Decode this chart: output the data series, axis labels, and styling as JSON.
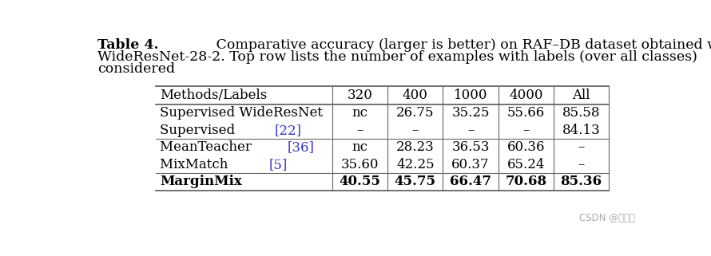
{
  "title_bold": "Table 4.",
  "title_rest_line1": " Comparative accuracy (larger is better) on RAF–DB dataset obtained with",
  "title_line2": "WideResNet-28-2. Top row lists the number of examples with labels (over all classes)",
  "title_line3": "considered",
  "col_headers": [
    "Methods/Labels",
    "320",
    "400",
    "1000",
    "4000",
    "All"
  ],
  "rows": [
    {
      "method": "Supervised WideResNet",
      "ref": null,
      "vals": [
        "nc",
        "26.75",
        "35.25",
        "55.66",
        "85.58"
      ],
      "bold": false
    },
    {
      "method": "Supervised ",
      "ref": "[22]",
      "vals": [
        "–",
        "–",
        "–",
        "–",
        "84.13"
      ],
      "bold": false
    },
    {
      "method": "MeanTeacher ",
      "ref": "[36]",
      "vals": [
        "nc",
        "28.23",
        "36.53",
        "60.36",
        "–"
      ],
      "bold": false
    },
    {
      "method": "MixMatch ",
      "ref": "[5]",
      "vals": [
        "35.60",
        "42.25",
        "60.37",
        "65.24",
        "–"
      ],
      "bold": false
    },
    {
      "method": "MarginMix",
      "ref": null,
      "vals": [
        "40.55",
        "45.75",
        "66.47",
        "70.68",
        "85.36"
      ],
      "bold": true
    }
  ],
  "bg_color": "#ffffff",
  "text_color": "#000000",
  "ref_color": "#3333cc",
  "line_color": "#666666",
  "title_fontsize": 12.5,
  "table_fontsize": 12.0,
  "watermark_text": "CSDN @猫头丁",
  "watermark_color": "#aaaaaa",
  "watermark_fontsize": 8.5
}
